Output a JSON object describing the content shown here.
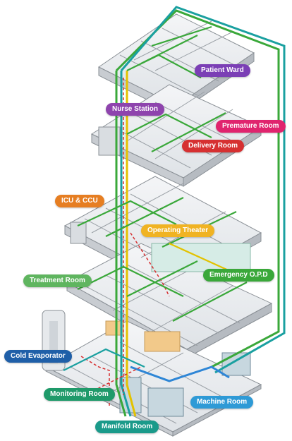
{
  "labels": {
    "patient_ward": "Patient Ward",
    "nurse_station": "Nurse Station",
    "premature_room": "Premature Room",
    "delivery_room": "Delivery Room",
    "icu_ccu": "ICU & CCU",
    "operating_theater": "Operating Theater",
    "treatment_room": "Treatment Room",
    "emergency_opd": "Emergency O.P.D",
    "cold_evaporator": "Cold Evaporator",
    "monitoring_room": "Monitoring Room",
    "machine_room": "Machine Room",
    "manifold_room": "Manifold Room"
  },
  "colors": {
    "patient_ward": "#7b3fb5",
    "nurse_station": "#8e44ad",
    "premature_room": "#e0246e",
    "delivery_room": "#d63031",
    "icu_ccu": "#e67e22",
    "operating_theater": "#f0b323",
    "treatment_room": "#5fb55f",
    "emergency_opd": "#3aa83a",
    "cold_evaporator": "#1f5fa8",
    "monitoring_room": "#1f9a6a",
    "machine_room": "#2e9ad6",
    "manifold_room": "#1a9a8a",
    "pipe_green": "#3aa83a",
    "pipe_teal": "#1aa0a0",
    "pipe_yellow": "#e3c200",
    "pipe_blue": "#2e86d6",
    "pipe_red": "#d63031",
    "floor_fill": "#eef0f2",
    "wall": "#8a9096"
  }
}
